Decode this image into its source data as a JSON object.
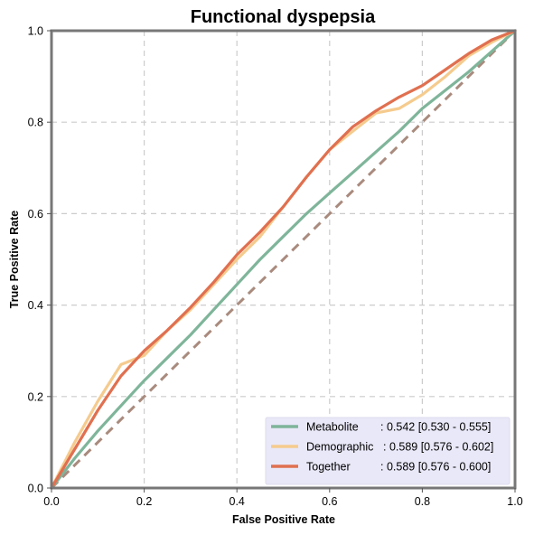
{
  "chart_data": {
    "type": "line",
    "title": "Functional dyspepsia",
    "xlabel": "False Positive Rate",
    "ylabel": "True Positive Rate",
    "xlim": [
      0,
      1
    ],
    "ylim": [
      0,
      1
    ],
    "xticks": [
      "0.0",
      "0.2",
      "0.4",
      "0.6",
      "0.8",
      "1.0"
    ],
    "yticks": [
      "0.0",
      "0.2",
      "0.4",
      "0.6",
      "0.8",
      "1.0"
    ],
    "grid": true,
    "legend_position": "bottom-right",
    "diagonal": {
      "x": [
        0,
        1
      ],
      "y": [
        0,
        1
      ],
      "color": "#a98b7e",
      "style": "dashed"
    },
    "series": [
      {
        "name": "Metabolite",
        "stat": ": 0.542 [0.530 - 0.555]",
        "color": "#7fb59a",
        "x": [
          0,
          0.05,
          0.1,
          0.15,
          0.2,
          0.25,
          0.3,
          0.35,
          0.4,
          0.45,
          0.5,
          0.55,
          0.6,
          0.65,
          0.7,
          0.75,
          0.8,
          0.85,
          0.9,
          0.95,
          1.0
        ],
        "y": [
          0,
          0.065,
          0.125,
          0.18,
          0.235,
          0.285,
          0.335,
          0.39,
          0.445,
          0.5,
          0.55,
          0.6,
          0.645,
          0.69,
          0.735,
          0.78,
          0.83,
          0.87,
          0.91,
          0.955,
          1.0
        ]
      },
      {
        "name": "Demographic",
        "stat": ": 0.589 [0.576 - 0.602]",
        "color": "#f5cb8e",
        "x": [
          0,
          0.05,
          0.1,
          0.15,
          0.2,
          0.25,
          0.3,
          0.35,
          0.4,
          0.45,
          0.5,
          0.55,
          0.6,
          0.65,
          0.7,
          0.75,
          0.8,
          0.85,
          0.9,
          0.95,
          1.0
        ],
        "y": [
          0,
          0.1,
          0.19,
          0.27,
          0.29,
          0.345,
          0.39,
          0.445,
          0.5,
          0.55,
          0.615,
          0.68,
          0.74,
          0.78,
          0.82,
          0.83,
          0.86,
          0.9,
          0.945,
          0.975,
          1.0
        ]
      },
      {
        "name": "Together",
        "stat": ": 0.589 [0.576 - 0.600]",
        "color": "#e07050",
        "x": [
          0,
          0.05,
          0.1,
          0.15,
          0.2,
          0.25,
          0.3,
          0.35,
          0.4,
          0.45,
          0.5,
          0.55,
          0.6,
          0.65,
          0.7,
          0.75,
          0.8,
          0.85,
          0.9,
          0.95,
          1.0
        ],
        "y": [
          0,
          0.085,
          0.17,
          0.245,
          0.3,
          0.345,
          0.395,
          0.45,
          0.51,
          0.56,
          0.615,
          0.68,
          0.74,
          0.79,
          0.825,
          0.855,
          0.88,
          0.915,
          0.95,
          0.98,
          1.0
        ]
      }
    ]
  }
}
